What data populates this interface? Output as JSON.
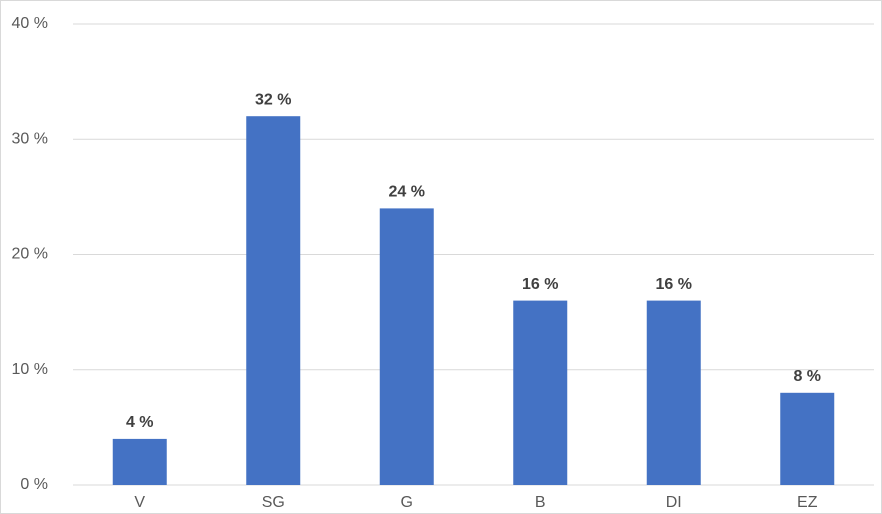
{
  "chart_data": {
    "type": "bar",
    "categories": [
      "V",
      "SG",
      "G",
      "B",
      "DI",
      "EZ"
    ],
    "values": [
      4,
      32,
      24,
      16,
      16,
      8
    ],
    "value_labels": [
      "4 %",
      "32 %",
      "24 %",
      "16 %",
      "16 %",
      "8 %"
    ],
    "color": "#4472c4",
    "ylim": [
      0,
      40
    ],
    "yticks": [
      {
        "value": 0,
        "label": "0 %"
      },
      {
        "value": 10,
        "label": "10 %"
      },
      {
        "value": 20,
        "label": "20 %"
      },
      {
        "value": 30,
        "label": "30 %"
      },
      {
        "value": 40,
        "label": "40 %"
      }
    ],
    "grid": true
  }
}
